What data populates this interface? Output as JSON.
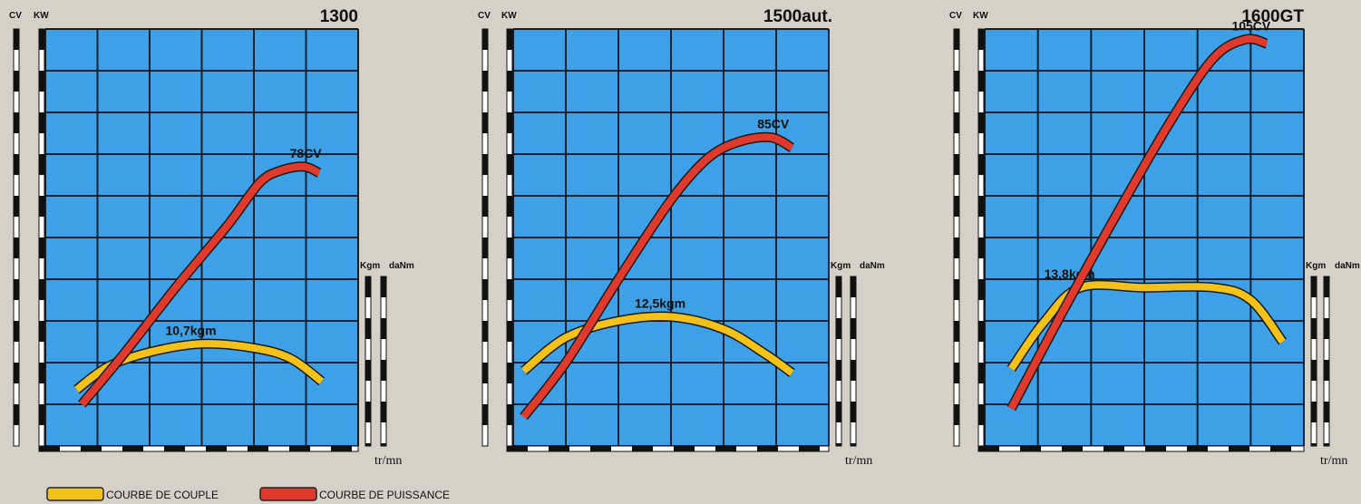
{
  "chart_data": [
    {
      "type": "line",
      "title": "1300",
      "left_axis_labels": [
        "CV",
        "KW"
      ],
      "right_axis_labels": [
        "Kgm",
        "daNm"
      ],
      "xlabel": "tr/mn",
      "grid": true,
      "series": [
        {
          "name": "COURBE DE COUPLE",
          "color": "#f2c21b",
          "annotation": "10,7kgm",
          "points": [
            [
              0.6,
              1.35
            ],
            [
              1.2,
              1.9
            ],
            [
              2,
              2.25
            ],
            [
              3,
              2.45
            ],
            [
              4,
              2.35
            ],
            [
              4.7,
              2.1
            ],
            [
              5.3,
              1.55
            ]
          ]
        },
        {
          "name": "COURBE DE PUISSANCE",
          "color": "#e03a2c",
          "annotation": "78CV",
          "points": [
            [
              0.7,
              1.0
            ],
            [
              1.5,
              2.2
            ],
            [
              2.5,
              3.8
            ],
            [
              3.5,
              5.3
            ],
            [
              4.1,
              6.3
            ],
            [
              4.5,
              6.6
            ],
            [
              4.95,
              6.7
            ],
            [
              5.25,
              6.55
            ]
          ]
        }
      ]
    },
    {
      "type": "line",
      "title": "1500aut.",
      "left_axis_labels": [
        "CV",
        "KW"
      ],
      "right_axis_labels": [
        "Kgm",
        "daNm"
      ],
      "xlabel": "tr/mn",
      "grid": true,
      "series": [
        {
          "name": "COURBE DE COUPLE",
          "color": "#f2c21b",
          "annotation": "12,5kgm",
          "points": [
            [
              0.2,
              1.8
            ],
            [
              1,
              2.6
            ],
            [
              2,
              3.0
            ],
            [
              3,
              3.1
            ],
            [
              4,
              2.8
            ],
            [
              4.8,
              2.2
            ],
            [
              5.3,
              1.75
            ]
          ]
        },
        {
          "name": "COURBE DE PUISSANCE",
          "color": "#e03a2c",
          "annotation": "85CV",
          "points": [
            [
              0.2,
              0.7
            ],
            [
              1,
              2.0
            ],
            [
              2,
              4.0
            ],
            [
              3,
              5.9
            ],
            [
              3.7,
              6.9
            ],
            [
              4.3,
              7.3
            ],
            [
              4.9,
              7.4
            ],
            [
              5.3,
              7.15
            ]
          ]
        }
      ]
    },
    {
      "type": "line",
      "title": "1600GT",
      "left_axis_labels": [
        "CV",
        "KW"
      ],
      "right_axis_labels": [
        "Kgm",
        "daNm"
      ],
      "xlabel": "tr/mn",
      "grid": true,
      "series": [
        {
          "name": "COURBE DE COUPLE",
          "color": "#f2c21b",
          "annotation": "13,8kgm",
          "points": [
            [
              0.5,
              1.85
            ],
            [
              1.1,
              2.95
            ],
            [
              1.8,
              3.8
            ],
            [
              3,
              3.8
            ],
            [
              4.3,
              3.8
            ],
            [
              5,
              3.5
            ],
            [
              5.6,
              2.5
            ]
          ]
        },
        {
          "name": "COURBE DE PUISSANCE",
          "color": "#e03a2c",
          "annotation": "105CV",
          "points": [
            [
              0.5,
              0.9
            ],
            [
              1.5,
              3.3
            ],
            [
              2.5,
              5.6
            ],
            [
              3.5,
              7.8
            ],
            [
              4.3,
              9.3
            ],
            [
              4.9,
              9.75
            ],
            [
              5.3,
              9.65
            ]
          ]
        }
      ]
    }
  ],
  "legend": [
    {
      "label": "COURBE DE COUPLE",
      "color": "#f2c21b"
    },
    {
      "label": "COURBE DE PUISSANCE",
      "color": "#e03a2c"
    }
  ],
  "colors": {
    "grid_background": "#3ea0e6",
    "grid_lines": "#0d2030",
    "page_background": "#d7d0c6"
  }
}
